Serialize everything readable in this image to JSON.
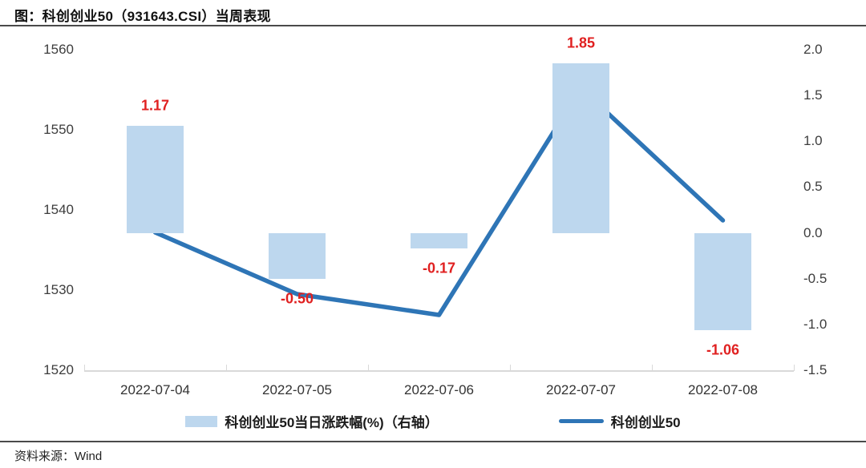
{
  "title": "图：科创创业50（931643.CSI）当周表现",
  "source_label": "资料来源：Wind",
  "legend": {
    "bar_label": "科创创业50当日涨跌幅(%)（右轴）",
    "line_label": "科创创业50"
  },
  "colors": {
    "bar_fill": "#BDD7EE",
    "line_stroke": "#2E75B6",
    "data_label": "#E02020",
    "axis_line": "#D9D9D9",
    "rule": "#4a4a4a"
  },
  "chart_data": {
    "type": "combo",
    "categories": [
      "2022-07-04",
      "2022-07-05",
      "2022-07-06",
      "2022-07-07",
      "2022-07-08"
    ],
    "series": [
      {
        "name": "科创创业50当日涨跌幅(%)（右轴）",
        "type": "bar",
        "axis": "right",
        "values": [
          1.17,
          -0.5,
          -0.17,
          1.85,
          -1.06
        ],
        "labels": [
          "1.17",
          "-0.50",
          "-0.17",
          "1.85",
          "-1.06"
        ]
      },
      {
        "name": "科创创业50",
        "type": "line",
        "axis": "left",
        "values": [
          1537.2,
          1529.5,
          1526.9,
          1555.2,
          1538.7
        ]
      }
    ],
    "left_axis": {
      "min": 1520,
      "max": 1560,
      "tick_labels": [
        "1560",
        "1550",
        "1540",
        "1530",
        "1520"
      ]
    },
    "right_axis": {
      "min": -1.5,
      "max": 2.0,
      "tick_labels": [
        "2.0",
        "1.5",
        "1.0",
        "0.5",
        "0.0",
        "-0.5",
        "-1.0",
        "-1.5"
      ]
    },
    "grid": false,
    "legend_position": "bottom"
  }
}
